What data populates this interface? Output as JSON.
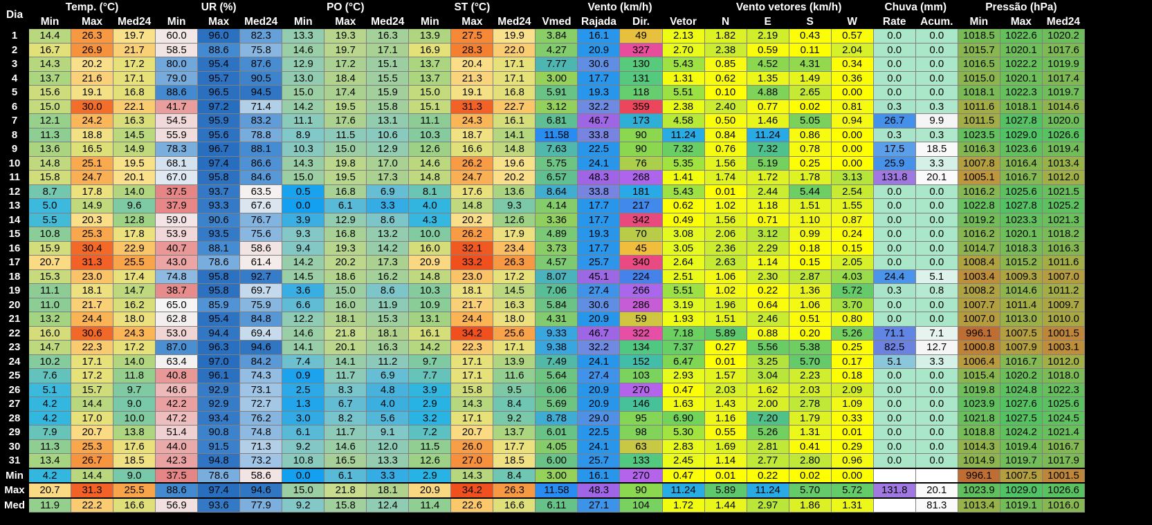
{
  "header": {
    "day_label": "Dia",
    "groups": [
      {
        "label": "Temp. (°C)",
        "span": 3
      },
      {
        "label": "UR (%)",
        "span": 3
      },
      {
        "label": "PO (°C)",
        "span": 3
      },
      {
        "label": "ST (°C)",
        "span": 3
      },
      {
        "label": "Vento (km/h)",
        "span": 4
      },
      {
        "label": "Vento vetores (km/h)",
        "span": 4
      },
      {
        "label": "Chuva (mm)",
        "span": 2
      },
      {
        "label": "Pressão (hPa)",
        "span": 3
      }
    ],
    "subcols": [
      "Min",
      "Max",
      "Med24",
      "Min",
      "Max",
      "Med24",
      "Min",
      "Max",
      "Med24",
      "Min",
      "Max",
      "Med24",
      "Vmed",
      "Rajada",
      "Dir.",
      "Vetor",
      "N",
      "E",
      "S",
      "W",
      "Rate",
      "Acum.",
      "Min",
      "Max",
      "Med24"
    ]
  },
  "rows": [
    [
      "1",
      "14.4",
      "26.3",
      "19.7",
      "60.0",
      "96.0",
      "82.3",
      "13.3",
      "19.3",
      "16.3",
      "13.9",
      "27.5",
      "19.9",
      "3.84",
      "16.1",
      "49",
      "2.13",
      "1.82",
      "2.19",
      "0.43",
      "0.57",
      "0.0",
      "0.0",
      "1018.5",
      "1022.6",
      "1020.2"
    ],
    [
      "2",
      "16.7",
      "26.9",
      "21.7",
      "58.5",
      "88.6",
      "75.8",
      "14.6",
      "19.7",
      "17.1",
      "16.9",
      "28.3",
      "22.0",
      "4.27",
      "20.9",
      "327",
      "2.70",
      "2.38",
      "0.59",
      "0.11",
      "2.04",
      "0.0",
      "0.0",
      "1015.7",
      "1020.1",
      "1017.6"
    ],
    [
      "3",
      "14.3",
      "20.2",
      "17.2",
      "80.0",
      "95.4",
      "87.6",
      "12.9",
      "17.2",
      "15.1",
      "13.7",
      "20.4",
      "17.1",
      "7.77",
      "30.6",
      "130",
      "5.43",
      "0.85",
      "4.52",
      "4.31",
      "0.34",
      "0.0",
      "0.0",
      "1016.5",
      "1022.2",
      "1019.9"
    ],
    [
      "4",
      "13.7",
      "21.6",
      "17.1",
      "79.0",
      "95.7",
      "90.5",
      "13.0",
      "18.4",
      "15.5",
      "13.7",
      "21.3",
      "17.1",
      "3.00",
      "17.7",
      "131",
      "1.31",
      "0.62",
      "1.35",
      "1.49",
      "0.36",
      "0.0",
      "0.0",
      "1015.0",
      "1020.1",
      "1017.4"
    ],
    [
      "5",
      "15.6",
      "19.1",
      "16.8",
      "88.6",
      "96.5",
      "94.5",
      "15.0",
      "17.4",
      "15.9",
      "15.0",
      "19.1",
      "16.8",
      "5.91",
      "19.3",
      "118",
      "5.51",
      "0.10",
      "4.88",
      "2.65",
      "0.00",
      "0.0",
      "0.0",
      "1018.1",
      "1022.3",
      "1019.7"
    ],
    [
      "6",
      "15.0",
      "30.0",
      "22.1",
      "41.7",
      "97.2",
      "71.4",
      "14.2",
      "19.5",
      "15.8",
      "15.1",
      "31.3",
      "22.7",
      "3.12",
      "32.2",
      "359",
      "2.38",
      "2.40",
      "0.77",
      "0.02",
      "0.81",
      "0.3",
      "0.3",
      "1011.6",
      "1018.1",
      "1014.6"
    ],
    [
      "7",
      "12.1",
      "24.2",
      "16.3",
      "54.5",
      "95.9",
      "83.2",
      "11.1",
      "17.6",
      "13.1",
      "11.1",
      "24.3",
      "16.1",
      "6.81",
      "46.7",
      "173",
      "4.58",
      "0.50",
      "1.46",
      "5.05",
      "0.94",
      "26.7",
      "9.9",
      "1011.5",
      "1027.8",
      "1020.0"
    ],
    [
      "8",
      "11.3",
      "18.8",
      "14.5",
      "55.9",
      "95.6",
      "78.8",
      "8.9",
      "11.5",
      "10.6",
      "10.3",
      "18.7",
      "14.1",
      "11.58",
      "33.8",
      "90",
      "11.24",
      "0.84",
      "11.24",
      "0.86",
      "0.00",
      "0.3",
      "0.3",
      "1023.5",
      "1029.0",
      "1026.6"
    ],
    [
      "9",
      "13.6",
      "16.5",
      "14.9",
      "78.3",
      "96.7",
      "88.1",
      "10.3",
      "15.0",
      "12.9",
      "12.6",
      "16.6",
      "14.8",
      "7.63",
      "22.5",
      "90",
      "7.32",
      "0.76",
      "7.32",
      "0.78",
      "0.00",
      "17.5",
      "18.5",
      "1016.3",
      "1023.6",
      "1019.4"
    ],
    [
      "10",
      "14.8",
      "25.1",
      "19.5",
      "68.1",
      "97.4",
      "86.6",
      "14.3",
      "19.8",
      "17.0",
      "14.6",
      "26.2",
      "19.6",
      "5.75",
      "24.1",
      "76",
      "5.35",
      "1.56",
      "5.19",
      "0.25",
      "0.00",
      "25.9",
      "3.3",
      "1007.8",
      "1016.4",
      "1013.4"
    ],
    [
      "11",
      "15.8",
      "24.7",
      "20.1",
      "67.0",
      "95.8",
      "84.6",
      "15.0",
      "19.5",
      "17.3",
      "14.8",
      "24.7",
      "20.2",
      "6.57",
      "48.3",
      "268",
      "1.41",
      "1.74",
      "1.72",
      "1.78",
      "3.13",
      "131.8",
      "20.1",
      "1005.1",
      "1016.7",
      "1012.0"
    ],
    [
      "12",
      "8.7",
      "17.8",
      "14.0",
      "37.5",
      "93.7",
      "63.5",
      "0.5",
      "16.8",
      "6.9",
      "8.1",
      "17.6",
      "13.6",
      "8.64",
      "33.8",
      "181",
      "5.43",
      "0.01",
      "2.44",
      "5.44",
      "2.54",
      "0.0",
      "0.0",
      "1016.2",
      "1025.6",
      "1021.5"
    ],
    [
      "13",
      "5.0",
      "14.9",
      "9.6",
      "37.9",
      "93.3",
      "67.6",
      "0.0",
      "6.1",
      "3.3",
      "4.0",
      "14.8",
      "9.3",
      "4.14",
      "17.7",
      "217",
      "0.62",
      "1.02",
      "1.18",
      "1.51",
      "1.55",
      "0.0",
      "0.0",
      "1022.8",
      "1027.8",
      "1025.2"
    ],
    [
      "14",
      "5.5",
      "20.3",
      "12.8",
      "59.0",
      "90.6",
      "76.7",
      "3.9",
      "12.9",
      "8.6",
      "4.3",
      "20.2",
      "12.6",
      "3.36",
      "17.7",
      "342",
      "0.49",
      "1.56",
      "0.71",
      "1.10",
      "0.87",
      "0.0",
      "0.0",
      "1019.2",
      "1023.3",
      "1021.3"
    ],
    [
      "15",
      "10.8",
      "25.3",
      "17.8",
      "53.9",
      "93.5",
      "75.6",
      "9.3",
      "16.8",
      "13.2",
      "10.0",
      "26.2",
      "17.9",
      "4.89",
      "19.3",
      "70",
      "3.08",
      "2.06",
      "3.12",
      "0.99",
      "0.24",
      "0.0",
      "0.0",
      "1016.2",
      "1020.1",
      "1018.2"
    ],
    [
      "16",
      "15.9",
      "30.4",
      "22.9",
      "40.7",
      "88.1",
      "58.6",
      "9.4",
      "19.3",
      "14.2",
      "16.0",
      "32.1",
      "23.4",
      "3.73",
      "17.7",
      "45",
      "3.05",
      "2.36",
      "2.29",
      "0.18",
      "0.15",
      "0.0",
      "0.0",
      "1014.7",
      "1018.3",
      "1016.3"
    ],
    [
      "17",
      "20.7",
      "31.3",
      "25.5",
      "43.0",
      "78.6",
      "61.4",
      "14.2",
      "20.2",
      "17.3",
      "20.9",
      "33.2",
      "26.3",
      "4.57",
      "25.7",
      "340",
      "2.64",
      "2.63",
      "1.14",
      "0.15",
      "2.05",
      "0.0",
      "0.0",
      "1008.4",
      "1015.2",
      "1011.6"
    ],
    [
      "18",
      "15.3",
      "23.0",
      "17.4",
      "74.8",
      "95.8",
      "92.7",
      "14.5",
      "18.6",
      "16.2",
      "14.8",
      "23.0",
      "17.2",
      "8.07",
      "45.1",
      "224",
      "2.51",
      "1.06",
      "2.30",
      "2.87",
      "4.03",
      "24.4",
      "5.1",
      "1003.4",
      "1009.3",
      "1007.0"
    ],
    [
      "19",
      "11.1",
      "18.1",
      "14.7",
      "38.7",
      "95.8",
      "69.7",
      "3.6",
      "15.0",
      "8.6",
      "10.3",
      "18.1",
      "14.5",
      "7.06",
      "27.4",
      "266",
      "5.51",
      "1.02",
      "0.22",
      "1.36",
      "5.72",
      "0.3",
      "0.8",
      "1008.2",
      "1014.6",
      "1011.2"
    ],
    [
      "20",
      "11.0",
      "21.7",
      "16.2",
      "65.0",
      "85.9",
      "75.9",
      "6.6",
      "16.0",
      "11.9",
      "10.9",
      "21.7",
      "16.3",
      "5.84",
      "30.6",
      "286",
      "3.19",
      "1.96",
      "0.64",
      "1.06",
      "3.70",
      "0.0",
      "0.0",
      "1007.7",
      "1011.4",
      "1009.7"
    ],
    [
      "21",
      "13.2",
      "24.4",
      "18.0",
      "62.8",
      "95.4",
      "84.8",
      "12.2",
      "18.1",
      "15.3",
      "13.1",
      "24.4",
      "18.0",
      "4.31",
      "20.9",
      "59",
      "1.93",
      "1.51",
      "2.46",
      "0.51",
      "0.80",
      "0.0",
      "0.0",
      "1007.0",
      "1013.0",
      "1010.0"
    ],
    [
      "22",
      "16.0",
      "30.6",
      "24.3",
      "53.0",
      "94.4",
      "69.4",
      "14.6",
      "21.8",
      "18.1",
      "16.1",
      "34.2",
      "25.6",
      "9.33",
      "46.7",
      "322",
      "7.18",
      "5.89",
      "0.88",
      "0.20",
      "5.26",
      "71.1",
      "7.1",
      "996.1",
      "1007.5",
      "1001.5"
    ],
    [
      "23",
      "14.7",
      "22.3",
      "17.2",
      "87.0",
      "96.3",
      "94.6",
      "14.1",
      "20.1",
      "16.3",
      "14.2",
      "22.3",
      "17.1",
      "9.38",
      "32.2",
      "134",
      "7.37",
      "0.27",
      "5.56",
      "5.38",
      "0.25",
      "82.5",
      "12.7",
      "1000.8",
      "1007.9",
      "1003.1"
    ],
    [
      "24",
      "10.2",
      "17.1",
      "14.0",
      "63.4",
      "97.0",
      "84.2",
      "7.4",
      "14.1",
      "11.2",
      "9.7",
      "17.1",
      "13.9",
      "7.49",
      "24.1",
      "152",
      "6.47",
      "0.01",
      "3.25",
      "5.70",
      "0.17",
      "5.1",
      "3.3",
      "1006.4",
      "1016.7",
      "1012.0"
    ],
    [
      "25",
      "7.6",
      "17.2",
      "11.8",
      "40.8",
      "96.1",
      "74.3",
      "0.9",
      "11.7",
      "6.9",
      "7.7",
      "17.1",
      "11.6",
      "5.64",
      "27.4",
      "103",
      "2.93",
      "1.57",
      "3.04",
      "2.23",
      "0.18",
      "0.0",
      "0.0",
      "1015.4",
      "1020.2",
      "1018.0"
    ],
    [
      "26",
      "5.1",
      "15.7",
      "9.7",
      "46.6",
      "92.9",
      "73.1",
      "2.5",
      "8.3",
      "4.8",
      "3.9",
      "15.8",
      "9.5",
      "6.06",
      "20.9",
      "270",
      "0.47",
      "2.03",
      "1.62",
      "2.03",
      "2.09",
      "0.0",
      "0.0",
      "1019.8",
      "1024.8",
      "1022.3"
    ],
    [
      "27",
      "4.2",
      "14.4",
      "9.0",
      "42.2",
      "92.9",
      "72.7",
      "1.3",
      "6.7",
      "4.0",
      "2.9",
      "14.3",
      "8.4",
      "5.69",
      "20.9",
      "146",
      "1.63",
      "1.43",
      "2.00",
      "2.78",
      "1.09",
      "0.0",
      "0.0",
      "1023.9",
      "1027.6",
      "1025.6"
    ],
    [
      "28",
      "4.2",
      "17.0",
      "10.0",
      "47.2",
      "93.4",
      "76.2",
      "3.0",
      "8.2",
      "5.6",
      "3.2",
      "17.1",
      "9.2",
      "8.78",
      "29.0",
      "95",
      "6.90",
      "1.16",
      "7.20",
      "1.79",
      "0.33",
      "0.0",
      "0.0",
      "1021.8",
      "1027.5",
      "1024.5"
    ],
    [
      "29",
      "7.9",
      "20.7",
      "13.8",
      "51.4",
      "90.8",
      "74.8",
      "6.1",
      "11.7",
      "9.1",
      "7.2",
      "20.7",
      "13.7",
      "6.01",
      "22.5",
      "98",
      "5.30",
      "0.55",
      "5.26",
      "1.31",
      "0.01",
      "0.0",
      "0.0",
      "1018.8",
      "1024.2",
      "1021.4"
    ],
    [
      "30",
      "11.3",
      "25.3",
      "17.6",
      "44.0",
      "91.5",
      "71.3",
      "9.2",
      "14.6",
      "12.0",
      "11.5",
      "26.0",
      "17.7",
      "4.05",
      "24.1",
      "63",
      "2.83",
      "1.69",
      "2.81",
      "0.41",
      "0.29",
      "0.0",
      "0.0",
      "1014.3",
      "1019.4",
      "1016.7"
    ],
    [
      "31",
      "13.4",
      "26.7",
      "18.5",
      "42.3",
      "94.8",
      "73.2",
      "10.8",
      "16.5",
      "13.3",
      "12.6",
      "27.0",
      "18.5",
      "6.00",
      "25.7",
      "133",
      "2.45",
      "1.14",
      "2.77",
      "2.80",
      "0.96",
      "0.0",
      "0.0",
      "1014.9",
      "1019.7",
      "1017.9"
    ]
  ],
  "summary": [
    [
      "Min",
      "4.2",
      "14.4",
      "9.0",
      "37.5",
      "78.6",
      "58.6",
      "0.0",
      "6.1",
      "3.3",
      "2.9",
      "14.3",
      "8.4",
      "3.00",
      "16.1",
      "270",
      "0.47",
      "0.01",
      "0.22",
      "0.02",
      "0.00",
      "",
      "",
      "996.1",
      "1007.5",
      "1001.5"
    ],
    [
      "Max",
      "20.7",
      "31.3",
      "25.5",
      "88.6",
      "97.4",
      "94.6",
      "15.0",
      "21.8",
      "18.1",
      "20.9",
      "34.2",
      "26.3",
      "11.58",
      "48.3",
      "90",
      "11.24",
      "5.89",
      "11.24",
      "5.70",
      "5.72",
      "131.8",
      "20.1",
      "1023.9",
      "1029.0",
      "1026.6"
    ],
    [
      "Med",
      "11.9",
      "22.2",
      "16.6",
      "56.9",
      "93.6",
      "77.9",
      "9.2",
      "15.8",
      "12.4",
      "11.4",
      "22.6",
      "16.6",
      "6.11",
      "27.1",
      "104",
      "1.72",
      "1.44",
      "2.97",
      "1.86",
      "1.31",
      "",
      "81.3",
      "1013.4",
      "1019.1",
      "1016.0"
    ]
  ],
  "column_colors": {
    "temp": "blue-green-yellow-red scale",
    "humidity": "red-white-blue scale",
    "dew_point": "blue-green scale",
    "wind_speed": "green-blue-purple scale",
    "wind_direction": "hue wheel",
    "wind_vectors": "yellow-green-blue scale",
    "rain": "white-green-blue-purple scale",
    "pressure": "brown-green scale"
  }
}
